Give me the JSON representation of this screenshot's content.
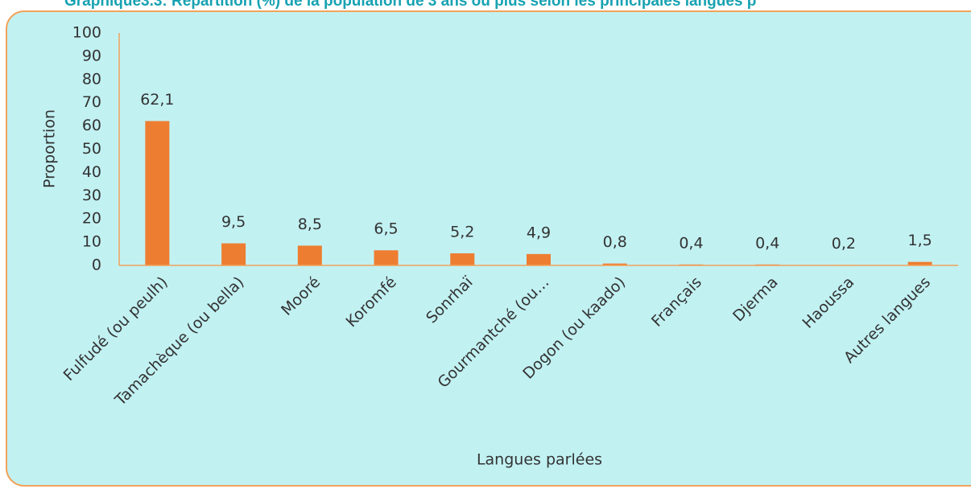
{
  "chart_data": {
    "type": "bar",
    "title": "Graphique3.3: Répartition (%) de la population de 3 ans ou plus selon les principales langues p",
    "x_label": "Langues parlées",
    "y_label": "Proportion",
    "categories": [
      "Fulfudé (ou peulh)",
      "Tamachèque (ou bella)",
      "Mooré",
      "Koromfé",
      "Sonrhaï",
      "Gourmantché (ou…",
      "Dogon (ou kaado)",
      "Français",
      "Djerma",
      "Haoussa",
      "Autres langues"
    ],
    "values": [
      62.1,
      9.5,
      8.5,
      6.5,
      5.2,
      4.9,
      0.8,
      0.4,
      0.4,
      0.2,
      1.5
    ],
    "value_labels": [
      "62,1",
      "9,5",
      "8,5",
      "6,5",
      "5,2",
      "4,9",
      "0,8",
      "0,4",
      "0,4",
      "0,2",
      "1,5"
    ],
    "color": "#ed7d31",
    "ylim": [
      0,
      100
    ],
    "yticks": [
      0,
      10,
      20,
      30,
      40,
      50,
      60,
      70,
      80,
      90,
      100
    ],
    "grid": false
  }
}
